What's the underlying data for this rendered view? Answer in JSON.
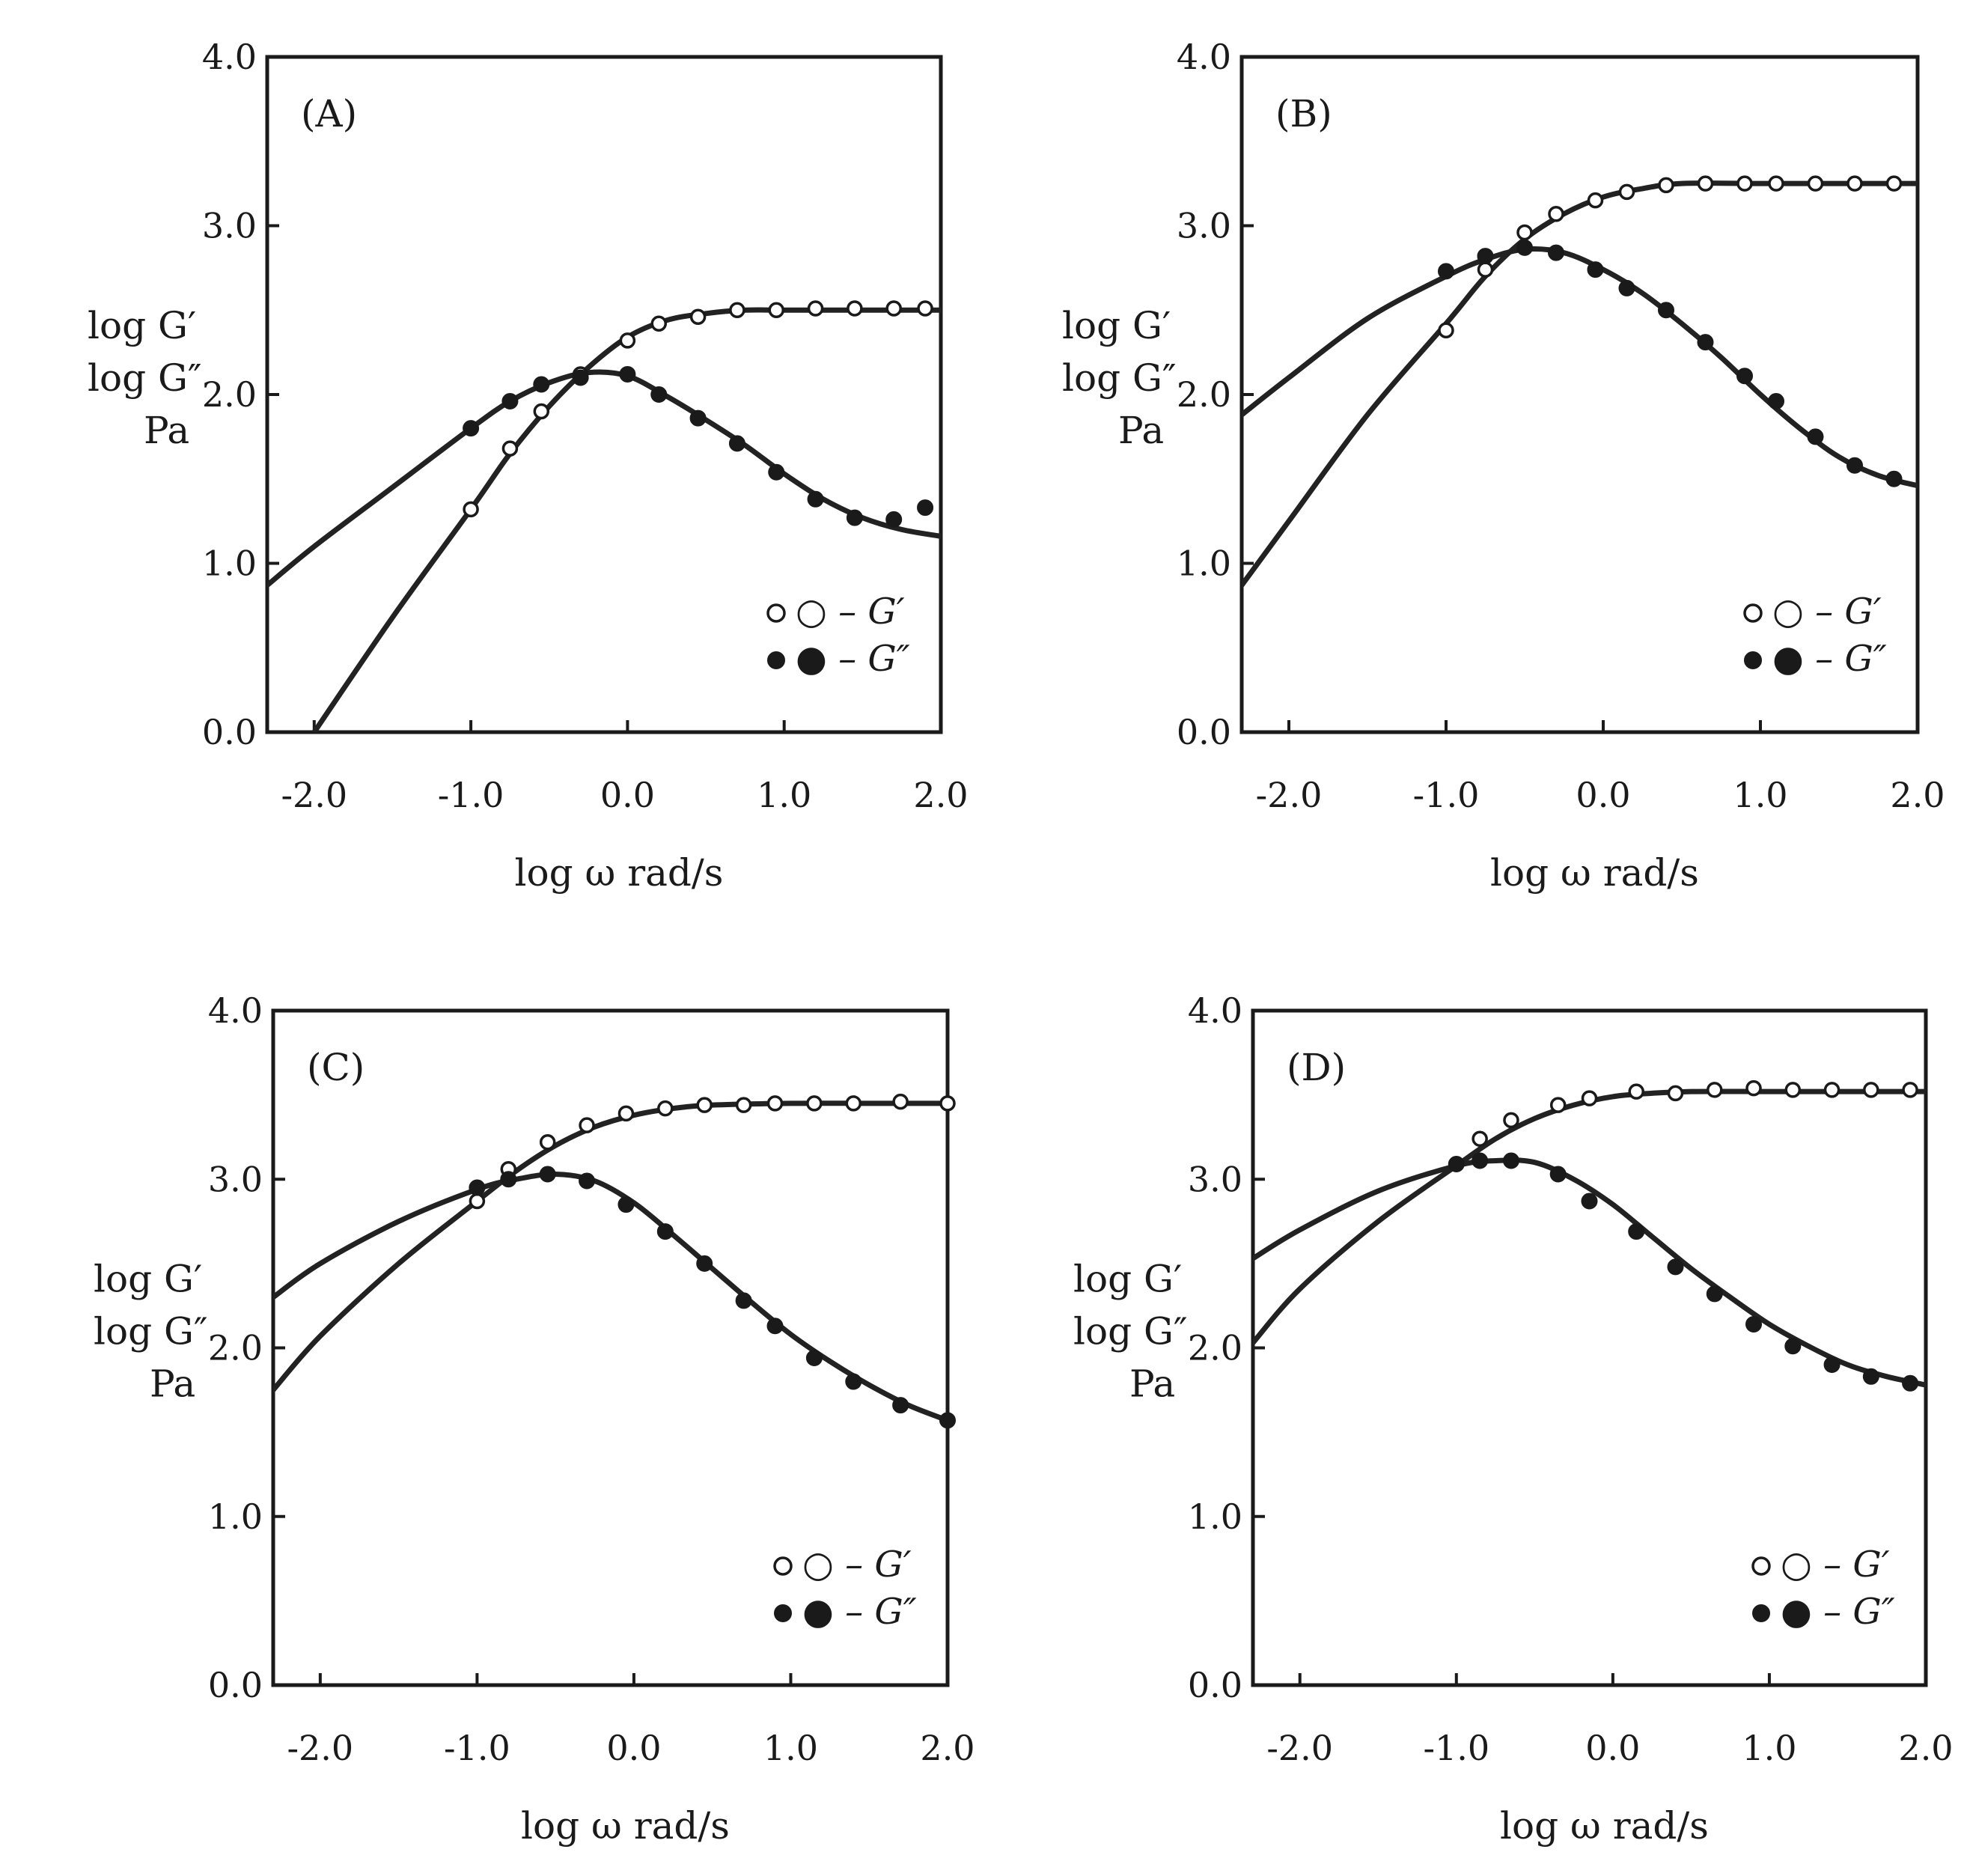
{
  "colors": {
    "ink": "#1a1a1a",
    "curve": "#222222",
    "background": "#ffffff"
  },
  "chart_data": [
    {
      "type": "scatter",
      "panel": "(A)",
      "xlabel": "log ω  rad/s",
      "ylabel": [
        "log G′",
        "log G″",
        "Pa"
      ],
      "xlim": [
        -2.3,
        2.0
      ],
      "ylim": [
        0.0,
        4.0
      ],
      "xticks": [
        "-2.0",
        "-1.0",
        "0.0",
        "1.0",
        "2.0"
      ],
      "yticks": [
        "0.0",
        "1.0",
        "2.0",
        "3.0",
        "4.0"
      ],
      "legend": {
        "position": "bottom-right",
        "entries": [
          "○ – G′",
          "● – G″"
        ]
      },
      "series": [
        {
          "name": "G′",
          "marker": "open-circle",
          "x": [
            -1.0,
            -0.75,
            -0.55,
            -0.3,
            0.0,
            0.2,
            0.45,
            0.7,
            0.95,
            1.2,
            1.45,
            1.7,
            1.9
          ],
          "y": [
            1.32,
            1.68,
            1.9,
            2.12,
            2.32,
            2.42,
            2.46,
            2.5,
            2.5,
            2.51,
            2.51,
            2.51,
            2.51
          ]
        },
        {
          "name": "G″",
          "marker": "filled-circle",
          "x": [
            -1.0,
            -0.75,
            -0.55,
            -0.3,
            0.0,
            0.2,
            0.45,
            0.7,
            0.95,
            1.2,
            1.45,
            1.7,
            1.9
          ],
          "y": [
            1.8,
            1.96,
            2.06,
            2.1,
            2.12,
            2.0,
            1.86,
            1.71,
            1.54,
            1.38,
            1.27,
            1.26,
            1.33
          ]
        },
        {
          "name": "G′ fit",
          "type": "line",
          "x": [
            -2.0,
            -1.5,
            -1.0,
            -0.75,
            -0.5,
            -0.25,
            0.0,
            0.25,
            0.5,
            0.75,
            1.0,
            1.5,
            2.0
          ],
          "y": [
            0.0,
            0.68,
            1.32,
            1.65,
            1.93,
            2.16,
            2.34,
            2.44,
            2.48,
            2.5,
            2.5,
            2.5,
            2.5
          ]
        },
        {
          "name": "G″ fit",
          "type": "line",
          "x": [
            -2.3,
            -2.0,
            -1.5,
            -1.0,
            -0.75,
            -0.5,
            -0.25,
            0.0,
            0.25,
            0.5,
            0.75,
            1.0,
            1.25,
            1.5,
            1.75,
            2.0
          ],
          "y": [
            0.87,
            1.1,
            1.45,
            1.8,
            1.96,
            2.07,
            2.13,
            2.11,
            1.99,
            1.85,
            1.7,
            1.53,
            1.38,
            1.27,
            1.2,
            1.16
          ]
        }
      ]
    },
    {
      "type": "scatter",
      "panel": "(B)",
      "xlabel": "log ω  rad/s",
      "ylabel": [
        "log G′",
        "log G″",
        "Pa"
      ],
      "xlim": [
        -2.3,
        2.0
      ],
      "ylim": [
        0.0,
        4.0
      ],
      "xticks": [
        "-2.0",
        "-1.0",
        "0.0",
        "1.0",
        "2.0"
      ],
      "yticks": [
        "0.0",
        "1.0",
        "2.0",
        "3.0",
        "4.0"
      ],
      "legend": {
        "position": "bottom-right",
        "entries": [
          "○ – G′",
          "● – G″"
        ]
      },
      "series": [
        {
          "name": "G′",
          "marker": "open-circle",
          "x": [
            -1.0,
            -0.75,
            -0.5,
            -0.3,
            -0.05,
            0.15,
            0.4,
            0.65,
            0.9,
            1.1,
            1.35,
            1.6,
            1.85
          ],
          "y": [
            2.38,
            2.74,
            2.96,
            3.07,
            3.15,
            3.2,
            3.24,
            3.25,
            3.25,
            3.25,
            3.25,
            3.25,
            3.25
          ]
        },
        {
          "name": "G″",
          "marker": "filled-circle",
          "x": [
            -1.0,
            -0.75,
            -0.5,
            -0.3,
            -0.05,
            0.15,
            0.4,
            0.65,
            0.9,
            1.1,
            1.35,
            1.6,
            1.85
          ],
          "y": [
            2.73,
            2.82,
            2.87,
            2.84,
            2.74,
            2.63,
            2.5,
            2.31,
            2.11,
            1.96,
            1.75,
            1.58,
            1.5
          ]
        },
        {
          "name": "G′ fit",
          "type": "line",
          "x": [
            -2.3,
            -2.0,
            -1.5,
            -1.0,
            -0.75,
            -0.5,
            -0.25,
            0.0,
            0.25,
            0.5,
            1.0,
            1.5,
            2.0
          ],
          "y": [
            0.87,
            1.25,
            1.88,
            2.42,
            2.7,
            2.92,
            3.07,
            3.17,
            3.22,
            3.25,
            3.25,
            3.25,
            3.25
          ]
        },
        {
          "name": "G″ fit",
          "type": "line",
          "x": [
            -2.3,
            -2.0,
            -1.5,
            -1.0,
            -0.75,
            -0.5,
            -0.25,
            0.0,
            0.25,
            0.5,
            0.75,
            1.0,
            1.25,
            1.5,
            1.75,
            2.0
          ],
          "y": [
            1.88,
            2.1,
            2.45,
            2.7,
            2.8,
            2.86,
            2.84,
            2.74,
            2.6,
            2.42,
            2.22,
            2.0,
            1.8,
            1.63,
            1.52,
            1.46
          ]
        }
      ]
    },
    {
      "type": "scatter",
      "panel": "(C)",
      "xlabel": "log ω  rad/s",
      "ylabel": [
        "log G′",
        "log G″",
        "Pa"
      ],
      "xlim": [
        -2.3,
        2.0
      ],
      "ylim": [
        0.0,
        4.0
      ],
      "xticks": [
        "-2.0",
        "-1.0",
        "0.0",
        "1.0",
        "2.0"
      ],
      "yticks": [
        "0.0",
        "1.0",
        "2.0",
        "3.0",
        "4.0"
      ],
      "legend": {
        "position": "bottom-right",
        "entries": [
          "○ – G′",
          "● – G″"
        ]
      },
      "series": [
        {
          "name": "G′",
          "marker": "open-circle",
          "x": [
            -1.0,
            -0.8,
            -0.55,
            -0.3,
            -0.05,
            0.2,
            0.45,
            0.7,
            0.9,
            1.15,
            1.4,
            1.7,
            2.0
          ],
          "y": [
            2.87,
            3.06,
            3.22,
            3.32,
            3.39,
            3.42,
            3.44,
            3.44,
            3.45,
            3.45,
            3.45,
            3.46,
            3.45
          ]
        },
        {
          "name": "G″",
          "marker": "filled-circle",
          "x": [
            -1.0,
            -0.8,
            -0.55,
            -0.3,
            -0.05,
            0.2,
            0.45,
            0.7,
            0.9,
            1.15,
            1.4,
            1.7,
            2.0
          ],
          "y": [
            2.95,
            3.0,
            3.03,
            2.99,
            2.85,
            2.69,
            2.5,
            2.28,
            2.13,
            1.94,
            1.8,
            1.66,
            1.57
          ]
        },
        {
          "name": "G′ fit",
          "type": "line",
          "x": [
            -2.3,
            -2.0,
            -1.5,
            -1.0,
            -0.75,
            -0.5,
            -0.25,
            0.0,
            0.25,
            0.5,
            1.0,
            1.5,
            2.0
          ],
          "y": [
            1.75,
            2.07,
            2.5,
            2.87,
            3.05,
            3.2,
            3.31,
            3.38,
            3.42,
            3.44,
            3.45,
            3.45,
            3.45
          ]
        },
        {
          "name": "G″ fit",
          "type": "line",
          "x": [
            -2.3,
            -2.0,
            -1.5,
            -1.0,
            -0.75,
            -0.5,
            -0.25,
            0.0,
            0.25,
            0.5,
            0.75,
            1.0,
            1.25,
            1.5,
            1.75,
            2.0
          ],
          "y": [
            2.3,
            2.5,
            2.75,
            2.94,
            3.0,
            3.03,
            2.99,
            2.86,
            2.67,
            2.47,
            2.27,
            2.08,
            1.92,
            1.78,
            1.66,
            1.57
          ]
        }
      ]
    },
    {
      "type": "scatter",
      "panel": "(D)",
      "xlabel": "log ω  rad/s",
      "ylabel": [
        "log G′",
        "log G″",
        "Pa"
      ],
      "xlim": [
        -2.3,
        2.0
      ],
      "ylim": [
        0.0,
        4.0
      ],
      "xticks": [
        "-2.0",
        "-1.0",
        "0.0",
        "1.0",
        "2.0"
      ],
      "yticks": [
        "0.0",
        "1.0",
        "2.0",
        "3.0",
        "4.0"
      ],
      "legend": {
        "position": "bottom-right",
        "entries": [
          "○ – G′",
          "● – G″"
        ]
      },
      "series": [
        {
          "name": "G′",
          "marker": "open-circle",
          "x": [
            -1.0,
            -0.85,
            -0.65,
            -0.35,
            -0.15,
            0.15,
            0.4,
            0.65,
            0.9,
            1.15,
            1.4,
            1.65,
            1.9
          ],
          "y": [
            3.09,
            3.24,
            3.35,
            3.44,
            3.48,
            3.52,
            3.51,
            3.53,
            3.54,
            3.53,
            3.53,
            3.53,
            3.53
          ]
        },
        {
          "name": "G″",
          "marker": "filled-circle",
          "x": [
            -1.0,
            -0.85,
            -0.65,
            -0.35,
            -0.15,
            0.15,
            0.4,
            0.65,
            0.9,
            1.15,
            1.4,
            1.65,
            1.9
          ],
          "y": [
            3.09,
            3.11,
            3.11,
            3.03,
            2.87,
            2.69,
            2.48,
            2.32,
            2.14,
            2.01,
            1.9,
            1.83,
            1.79
          ]
        },
        {
          "name": "G′ fit",
          "type": "line",
          "x": [
            -2.3,
            -2.0,
            -1.5,
            -1.0,
            -0.75,
            -0.5,
            -0.25,
            0.0,
            0.25,
            0.5,
            1.0,
            1.5,
            2.0
          ],
          "y": [
            2.03,
            2.35,
            2.75,
            3.08,
            3.24,
            3.36,
            3.44,
            3.49,
            3.51,
            3.52,
            3.52,
            3.52,
            3.52
          ]
        },
        {
          "name": "G″ fit",
          "type": "line",
          "x": [
            -2.3,
            -2.0,
            -1.5,
            -1.0,
            -0.75,
            -0.5,
            -0.25,
            0.0,
            0.25,
            0.5,
            0.75,
            1.0,
            1.25,
            1.5,
            1.75,
            2.0
          ],
          "y": [
            2.53,
            2.7,
            2.93,
            3.08,
            3.11,
            3.1,
            3.0,
            2.85,
            2.66,
            2.47,
            2.3,
            2.14,
            2.01,
            1.9,
            1.83,
            1.78
          ]
        }
      ]
    }
  ]
}
